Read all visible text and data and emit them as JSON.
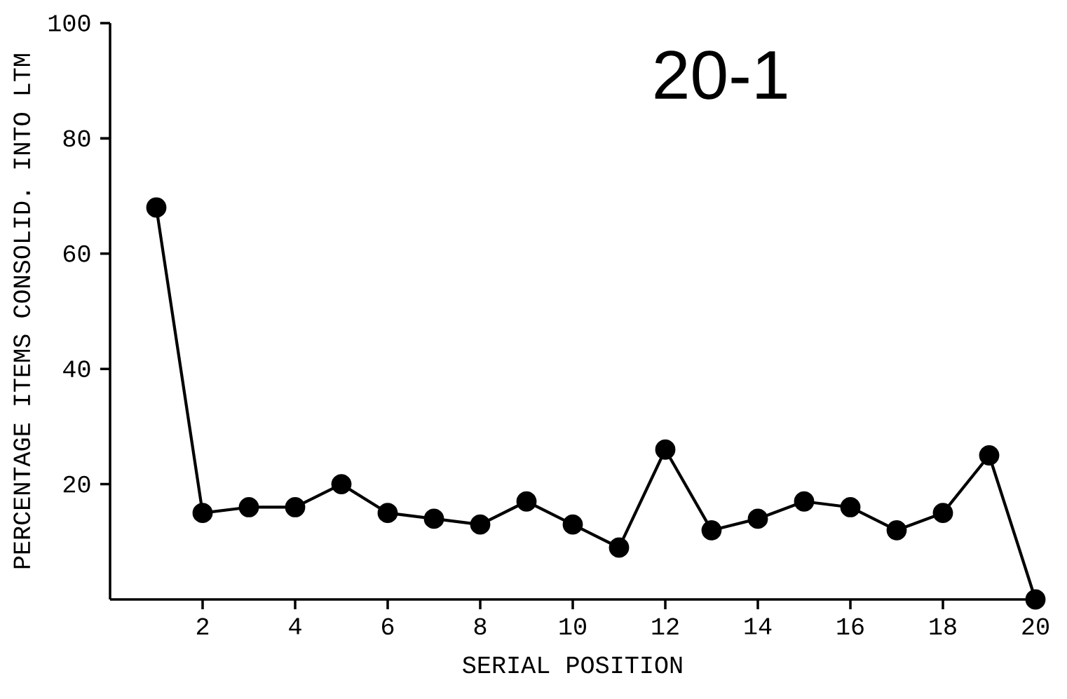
{
  "chart_data": {
    "type": "line",
    "xlabel": "SERIAL POSITION",
    "ylabel": "PERCENTAGE ITEMS CONSOLID. INTO LTM",
    "annotations": [
      "20-1"
    ],
    "x": [
      1,
      2,
      3,
      4,
      5,
      6,
      7,
      8,
      9,
      10,
      11,
      12,
      13,
      14,
      15,
      16,
      17,
      18,
      19,
      20
    ],
    "values": [
      68,
      15,
      16,
      16,
      20,
      15,
      14,
      13,
      17,
      13,
      9,
      26,
      12,
      14,
      17,
      16,
      12,
      15,
      25,
      0
    ],
    "color": "#000000",
    "marker": "circle",
    "line_style": "solid",
    "grid": false,
    "xlim": [
      0,
      20
    ],
    "ylim": [
      0,
      100
    ],
    "xticks": [
      2,
      4,
      6,
      8,
      10,
      12,
      14,
      16,
      18,
      20
    ],
    "yticks": [
      20,
      40,
      60,
      80,
      100
    ]
  }
}
